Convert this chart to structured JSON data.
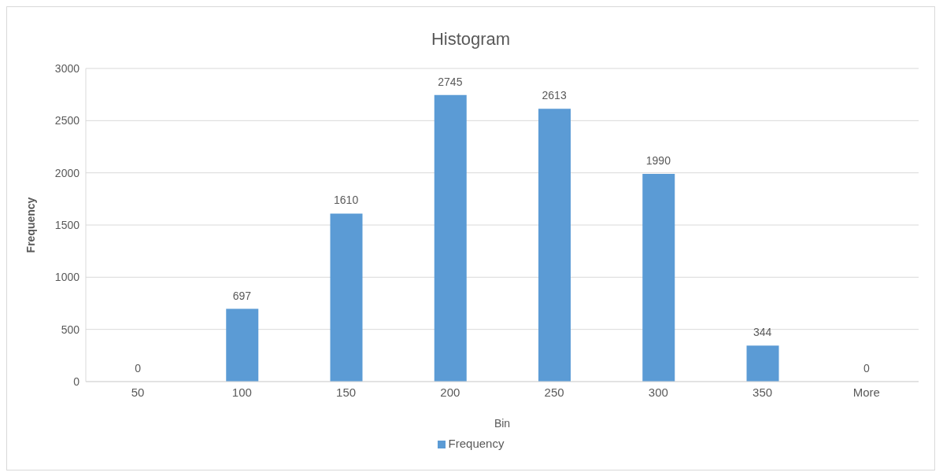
{
  "chart_data": {
    "type": "bar",
    "title": "Histogram",
    "xlabel": "Bin",
    "ylabel": "Frequency",
    "categories": [
      "50",
      "100",
      "150",
      "200",
      "250",
      "300",
      "350",
      "More"
    ],
    "series": [
      {
        "name": "Frequency",
        "color": "#5b9bd5",
        "values": [
          0,
          697,
          1610,
          2745,
          2613,
          1990,
          344,
          0
        ]
      }
    ],
    "ylim": [
      0,
      3000
    ],
    "yticks": [
      0,
      500,
      1000,
      1500,
      2000,
      2500,
      3000
    ],
    "grid": "y",
    "legend": "bottom",
    "data_labels": true
  }
}
